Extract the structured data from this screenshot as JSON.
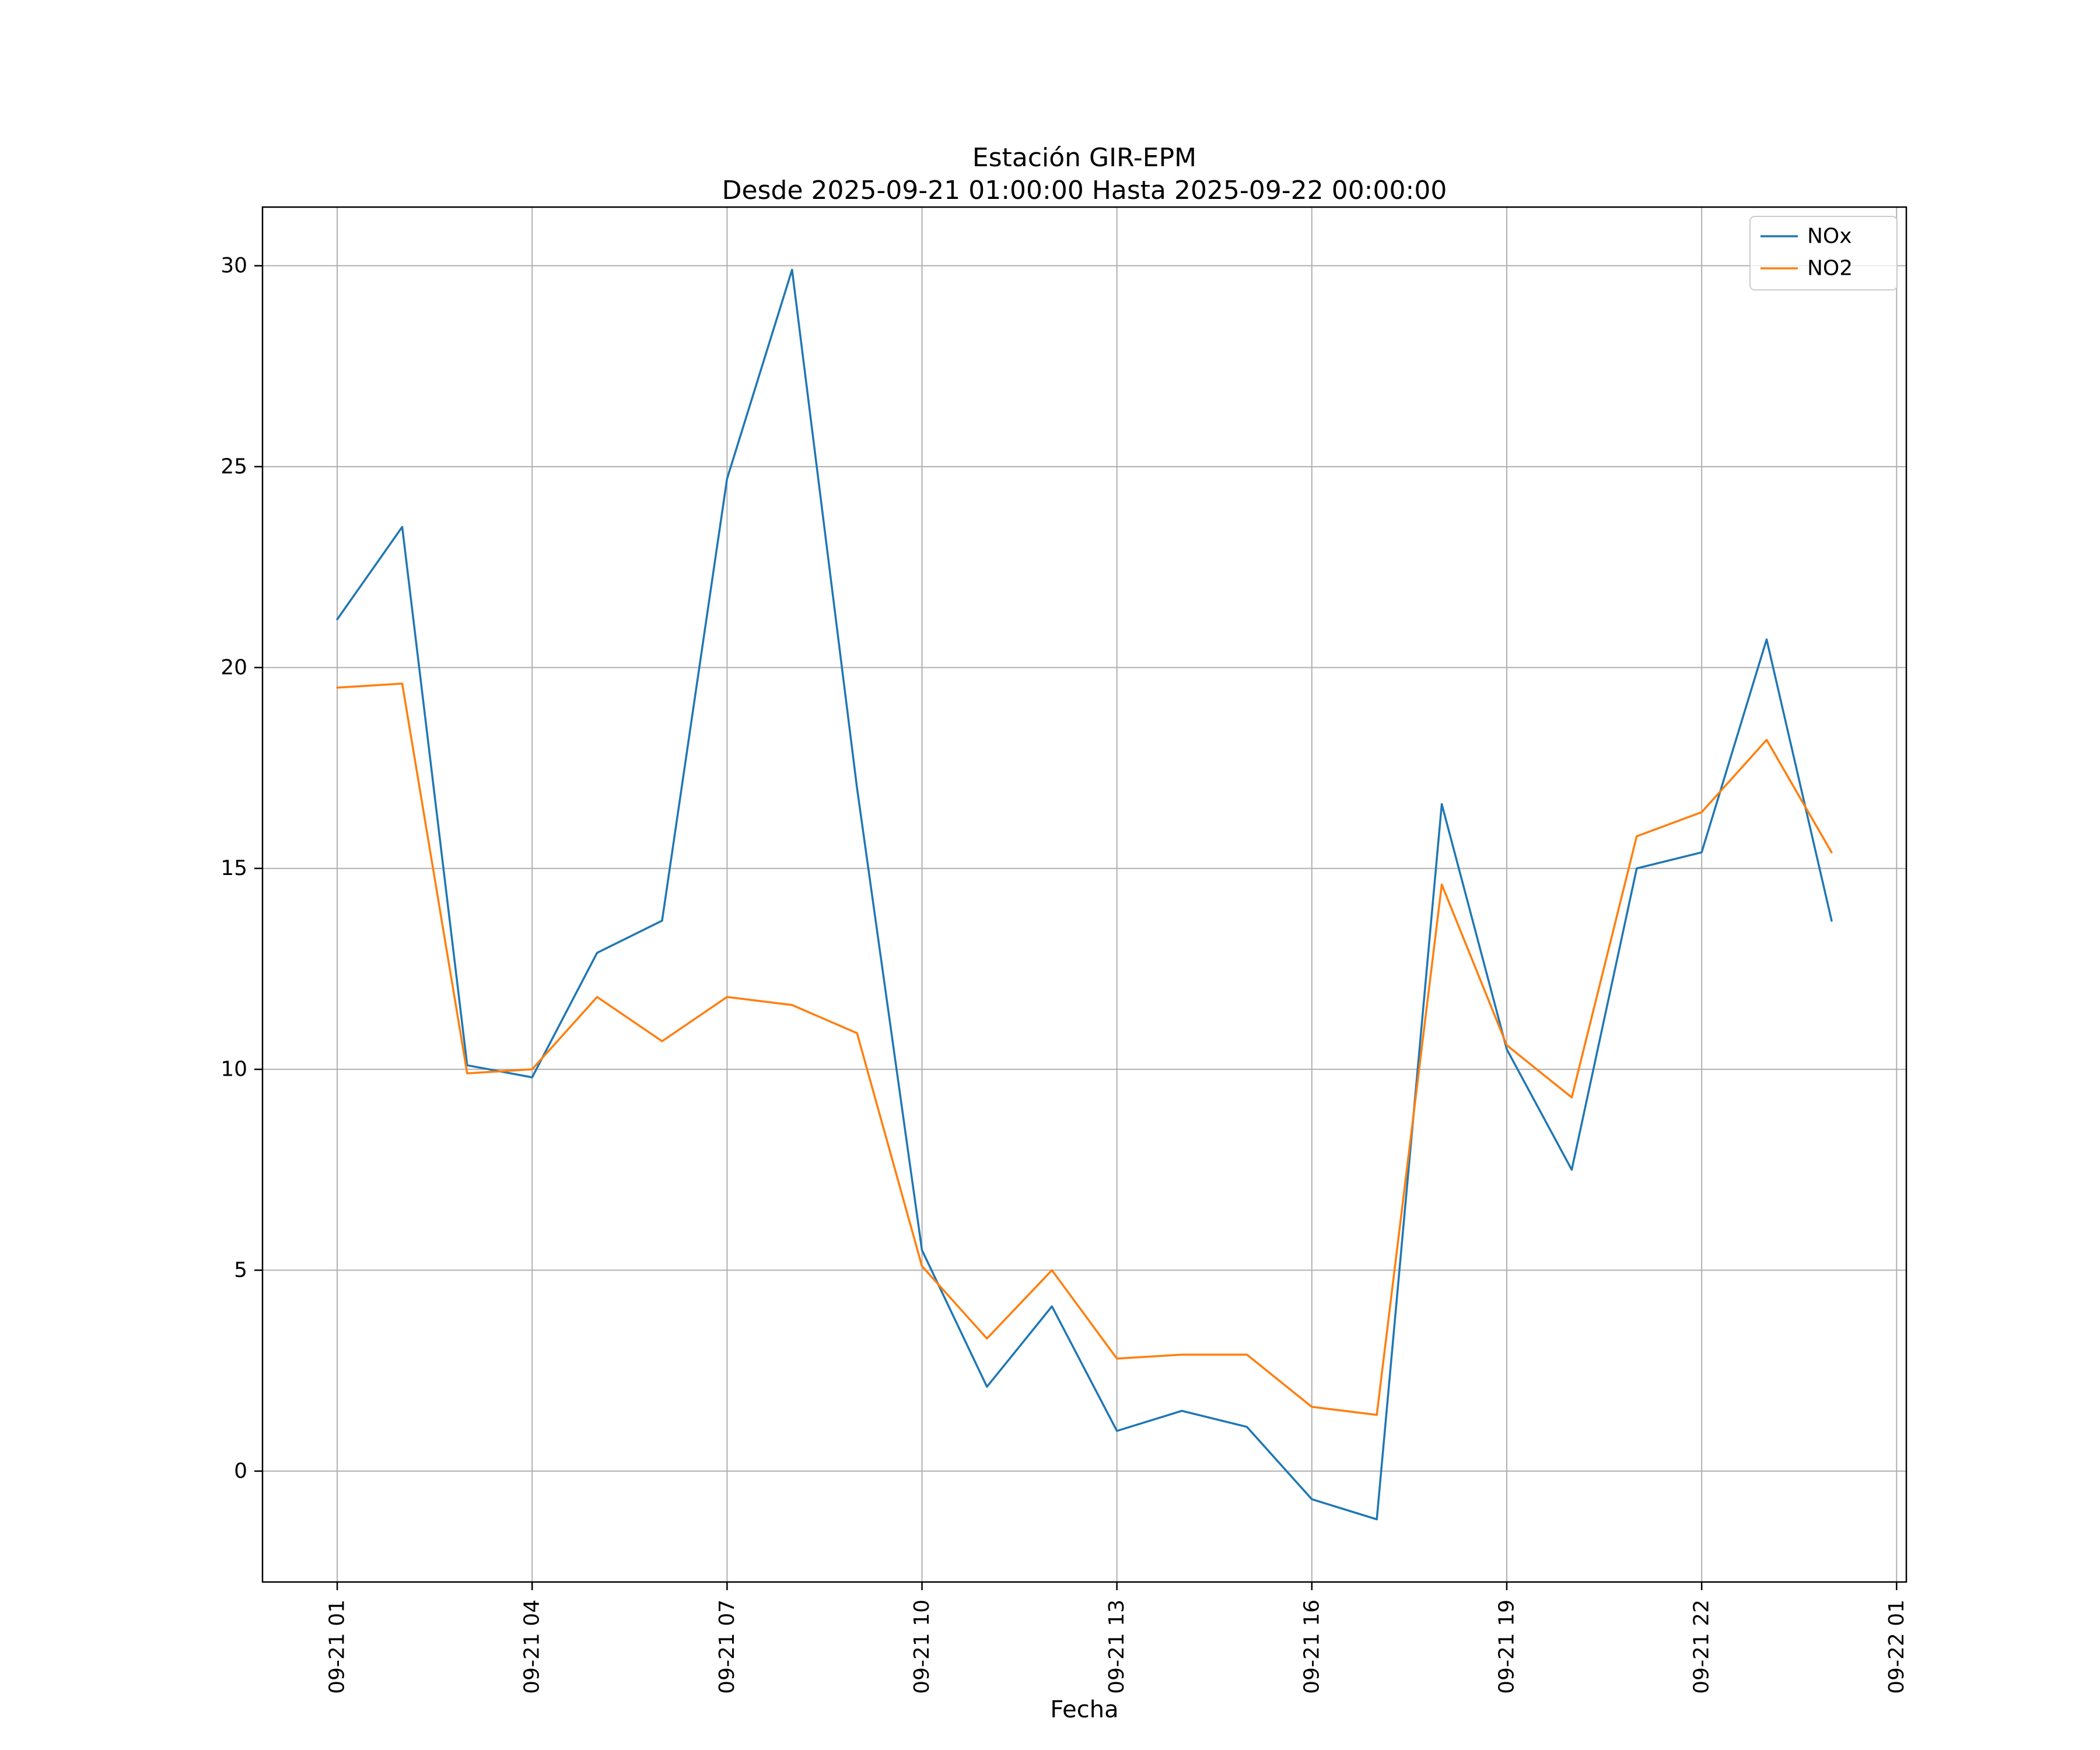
{
  "figure": {
    "title": "Estación GIR-EPM",
    "subtitle": "Desde 2025-09-21 01:00:00 Hasta 2025-09-22 00:00:00",
    "xlabel": "Fecha"
  },
  "chart_data": {
    "type": "line",
    "title": "Estación GIR-EPM",
    "subtitle": "Desde 2025-09-21 01:00:00 Hasta 2025-09-22 00:00:00",
    "xlabel": "Fecha",
    "ylabel": "",
    "grid": true,
    "legend_position": "upper right",
    "x": [
      1,
      2,
      3,
      4,
      5,
      6,
      7,
      8,
      9,
      10,
      11,
      12,
      13,
      14,
      15,
      16,
      17,
      18,
      19,
      20,
      21,
      22,
      23,
      24
    ],
    "x_tick_positions": [
      1,
      4,
      7,
      10,
      13,
      16,
      19,
      22,
      25
    ],
    "x_tick_labels": [
      "09-21 01",
      "09-21 04",
      "09-21 07",
      "09-21 10",
      "09-21 13",
      "09-21 16",
      "09-21 19",
      "09-21 22",
      "09-22 01"
    ],
    "y_ticks": [
      0,
      5,
      10,
      15,
      20,
      25,
      30
    ],
    "xlim": [
      -0.15,
      25.15
    ],
    "ylim": [
      -2.76,
      31.46
    ],
    "series": [
      {
        "name": "NOx",
        "color": "#1f77b4",
        "values": [
          21.2,
          23.5,
          10.1,
          9.8,
          12.9,
          13.7,
          24.7,
          29.9,
          17.0,
          5.5,
          2.1,
          4.1,
          1.0,
          1.5,
          1.1,
          -0.7,
          -1.2,
          16.6,
          10.5,
          7.5,
          15.0,
          15.4,
          20.7,
          13.7
        ]
      },
      {
        "name": "NO2",
        "color": "#ff7f0e",
        "values": [
          19.5,
          19.6,
          9.9,
          10.0,
          11.8,
          10.7,
          11.8,
          11.6,
          10.9,
          5.1,
          3.3,
          5.0,
          2.8,
          2.9,
          2.9,
          1.6,
          1.4,
          14.6,
          10.6,
          9.3,
          15.8,
          16.4,
          18.2,
          15.4
        ]
      }
    ],
    "style": {
      "grid_color": "#b0b0b0",
      "spine_color": "#000000",
      "legend_edge_color": "#cccccc",
      "background": "#ffffff"
    }
  }
}
